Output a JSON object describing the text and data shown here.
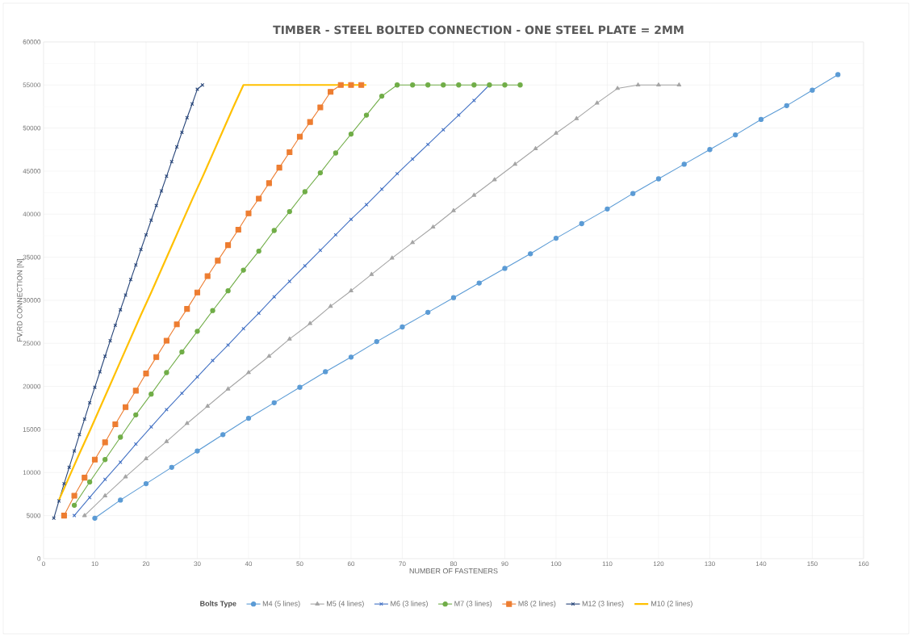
{
  "chart_data": {
    "type": "line",
    "title": "TIMBER - STEEL BOLTED CONNECTION - ONE STEEL PLATE = 2MM",
    "xlabel": "NUMBER OF FASTENERS",
    "ylabel": "FV,RD CONNECTION [N]",
    "legend_title": "Bolts Type",
    "xlim": [
      0,
      160
    ],
    "xticks": [
      0,
      10,
      20,
      30,
      40,
      50,
      60,
      70,
      80,
      90,
      100,
      110,
      120,
      130,
      140,
      150,
      160
    ],
    "ylim": [
      0,
      60000
    ],
    "yticks": [
      0,
      5000,
      10000,
      15000,
      20000,
      25000,
      30000,
      35000,
      40000,
      45000,
      50000,
      55000,
      60000
    ],
    "grid": true,
    "legend": "bottom",
    "series": [
      {
        "name": "M4 (5 lines)",
        "color": "#5b9bd5",
        "marker": "circle",
        "x": [
          10,
          15,
          20,
          25,
          30,
          35,
          40,
          45,
          50,
          55,
          60,
          65,
          70,
          75,
          80,
          85,
          90,
          95,
          100,
          105,
          110,
          115,
          120,
          125,
          130,
          135,
          140,
          145,
          150,
          155
        ],
        "values": [
          4700,
          6800,
          8700,
          10600,
          12500,
          14400,
          16300,
          18100,
          19900,
          21700,
          23400,
          25200,
          26900,
          28600,
          30300,
          32000,
          33700,
          35400,
          37200,
          38900,
          40600,
          42400,
          44100,
          45800,
          47500,
          49200,
          51000,
          52600,
          54400,
          56200
        ]
      },
      {
        "name": "M5 (4 lines)",
        "color": "#a5a5a5",
        "marker": "triangle",
        "x": [
          8,
          12,
          16,
          20,
          24,
          28,
          32,
          36,
          40,
          44,
          48,
          52,
          56,
          60,
          64,
          68,
          72,
          76,
          80,
          84,
          88,
          92,
          96,
          100,
          104,
          108,
          112,
          116,
          120,
          124
        ],
        "values": [
          5000,
          7300,
          9500,
          11600,
          13600,
          15700,
          17700,
          19700,
          21600,
          23500,
          25500,
          27300,
          29300,
          31100,
          33000,
          34900,
          36700,
          38500,
          40400,
          42200,
          44000,
          45800,
          47600,
          49400,
          51100,
          52900,
          54600,
          55000,
          55000,
          55000
        ]
      },
      {
        "name": "M6 (3 lines)",
        "color": "#4472c4",
        "marker": "cross",
        "x": [
          6,
          9,
          12,
          15,
          18,
          21,
          24,
          27,
          30,
          33,
          36,
          39,
          42,
          45,
          48,
          51,
          54,
          57,
          60,
          63,
          66,
          69,
          72,
          75,
          78,
          81,
          84,
          87
        ],
        "values": [
          5000,
          7100,
          9200,
          11200,
          13300,
          15300,
          17300,
          19200,
          21100,
          23000,
          24800,
          26700,
          28500,
          30400,
          32200,
          34000,
          35800,
          37600,
          39400,
          41100,
          42900,
          44700,
          46400,
          48100,
          49800,
          51500,
          53200,
          55000
        ]
      },
      {
        "name": "M7 (3 lines)",
        "color": "#70ad47",
        "marker": "circle",
        "x": [
          6,
          9,
          12,
          15,
          18,
          21,
          24,
          27,
          30,
          33,
          36,
          39,
          42,
          45,
          48,
          51,
          54,
          57,
          60,
          63,
          66,
          69,
          72,
          75,
          78,
          81,
          84,
          87,
          90,
          93
        ],
        "values": [
          6200,
          8900,
          11500,
          14100,
          16700,
          19100,
          21600,
          24000,
          26400,
          28800,
          31100,
          33500,
          35700,
          38100,
          40300,
          42600,
          44800,
          47100,
          49300,
          51500,
          53700,
          55000,
          55000,
          55000,
          55000,
          55000,
          55000,
          55000,
          55000,
          55000
        ]
      },
      {
        "name": "M8 (2 lines)",
        "color": "#ed7d31",
        "marker": "square",
        "x": [
          4,
          6,
          8,
          10,
          12,
          14,
          16,
          18,
          20,
          22,
          24,
          26,
          28,
          30,
          32,
          34,
          36,
          38,
          40,
          42,
          44,
          46,
          48,
          50,
          52,
          54,
          56,
          58,
          60,
          62
        ],
        "values": [
          5000,
          7300,
          9400,
          11500,
          13500,
          15600,
          17600,
          19500,
          21500,
          23400,
          25300,
          27200,
          29000,
          30900,
          32800,
          34600,
          36400,
          38200,
          40100,
          41800,
          43600,
          45400,
          47200,
          49000,
          50700,
          52400,
          54200,
          55000,
          55000,
          55000
        ]
      },
      {
        "name": "M10 (2 lines)",
        "color": "#ffc000",
        "marker": "none",
        "x": [
          3,
          5,
          7,
          9,
          11,
          13,
          15,
          17,
          19,
          21,
          23,
          25,
          27,
          29,
          31,
          33,
          35,
          37,
          39,
          41,
          43,
          45,
          47,
          49,
          51,
          53,
          55,
          57,
          59,
          61,
          63
        ],
        "values": [
          6800,
          9500,
          12200,
          14800,
          17500,
          20200,
          22900,
          25600,
          28300,
          30900,
          33600,
          36300,
          39000,
          41700,
          44300,
          47000,
          49700,
          52400,
          55000,
          55000,
          55000,
          55000,
          55000,
          55000,
          55000,
          55000,
          55000,
          55000,
          55000,
          55000,
          55000
        ]
      },
      {
        "name": "M12 (3 lines)",
        "color": "#264478",
        "marker": "cross",
        "x": [
          2,
          3,
          4,
          5,
          6,
          7,
          8,
          9,
          10,
          11,
          12,
          13,
          14,
          15,
          16,
          17,
          18,
          19,
          20,
          21,
          22,
          23,
          24,
          25,
          26,
          27,
          28,
          29,
          30,
          31
        ],
        "values": [
          4700,
          6700,
          8700,
          10600,
          12500,
          14400,
          16200,
          18100,
          19900,
          21700,
          23500,
          25300,
          27100,
          28900,
          30600,
          32400,
          34100,
          35900,
          37600,
          39300,
          41000,
          42700,
          44400,
          46100,
          47800,
          49500,
          51200,
          52800,
          54500,
          55000
        ]
      }
    ]
  }
}
